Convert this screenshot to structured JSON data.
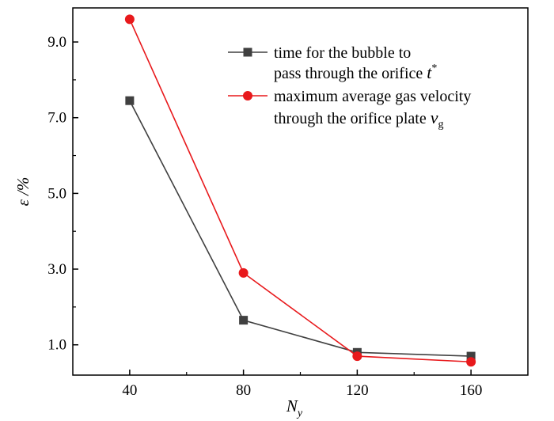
{
  "chart_data": {
    "type": "line",
    "xlabel": "N",
    "xlabel_sub": "y",
    "ylabel": "ε /%",
    "x": [
      40,
      80,
      120,
      160
    ],
    "x_ticks": [
      "40",
      "80",
      "120",
      "160"
    ],
    "y_ticks": [
      "1.0",
      "3.0",
      "5.0",
      "7.0",
      "9.0"
    ],
    "xlim": [
      20,
      180
    ],
    "ylim": [
      0.2,
      9.9
    ],
    "series": [
      {
        "name": "time for the bubble to pass through the orifice t*",
        "legend_line1": "time for the bubble to",
        "legend_line2_text": "pass through the orifice ",
        "legend_line2_var": "t",
        "legend_line2_sup": "*",
        "color": "#404040",
        "marker": "square",
        "values": [
          7.45,
          1.65,
          0.8,
          0.7
        ]
      },
      {
        "name": "maximum average gas velocity through the orifice plate vg",
        "legend_line1": "maximum average gas velocity",
        "legend_line2_text": "through the orifice plate ",
        "legend_line2_var": "v",
        "legend_line2_sub": "g",
        "color": "#e8191c",
        "marker": "circle",
        "values": [
          9.6,
          2.9,
          0.7,
          0.55
        ]
      }
    ],
    "legend_position": "top-right",
    "grid": false
  }
}
